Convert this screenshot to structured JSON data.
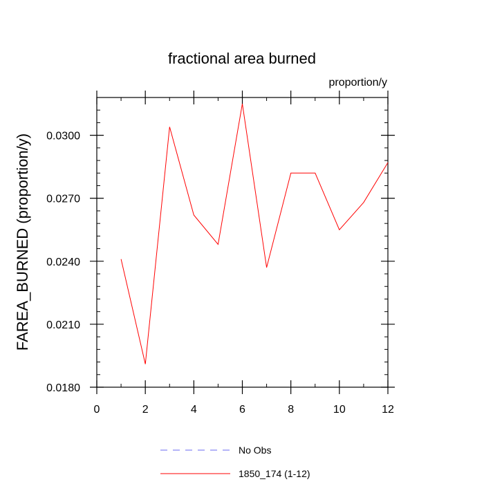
{
  "chart_data": {
    "type": "line",
    "title": "fractional area burned",
    "units_label": "proportion/y",
    "ylabel": "FAREA_BURNED  (proportion/y)",
    "xlabel": "",
    "xlim": [
      0,
      12
    ],
    "ylim": [
      0.018,
      0.0318
    ],
    "x_ticks": [
      0,
      2,
      4,
      6,
      8,
      10,
      12
    ],
    "x_tick_labels": [
      "0",
      "2",
      "4",
      "6",
      "8",
      "10",
      "12"
    ],
    "y_ticks": [
      0.018,
      0.021,
      0.024,
      0.027,
      0.03
    ],
    "y_tick_labels": [
      "0.0180",
      "0.0210",
      "0.0240",
      "0.0270",
      "0.0300"
    ],
    "grid": false,
    "legend_position": "bottom",
    "series": [
      {
        "name": "1850_174 (1-12)",
        "color": "#ff0000",
        "style": "solid",
        "x": [
          1,
          2,
          3,
          4,
          5,
          6,
          7,
          8,
          9,
          10,
          11,
          12
        ],
        "y": [
          0.0241,
          0.0191,
          0.0304,
          0.0262,
          0.0248,
          0.0315,
          0.0237,
          0.0282,
          0.0282,
          0.0255,
          0.0268,
          0.0287
        ]
      }
    ],
    "legend": [
      {
        "label": "No Obs",
        "color": "#6a6af0",
        "style": "dashed"
      },
      {
        "label": "1850_174 (1-12)",
        "color": "#ff0000",
        "style": "solid"
      }
    ]
  }
}
